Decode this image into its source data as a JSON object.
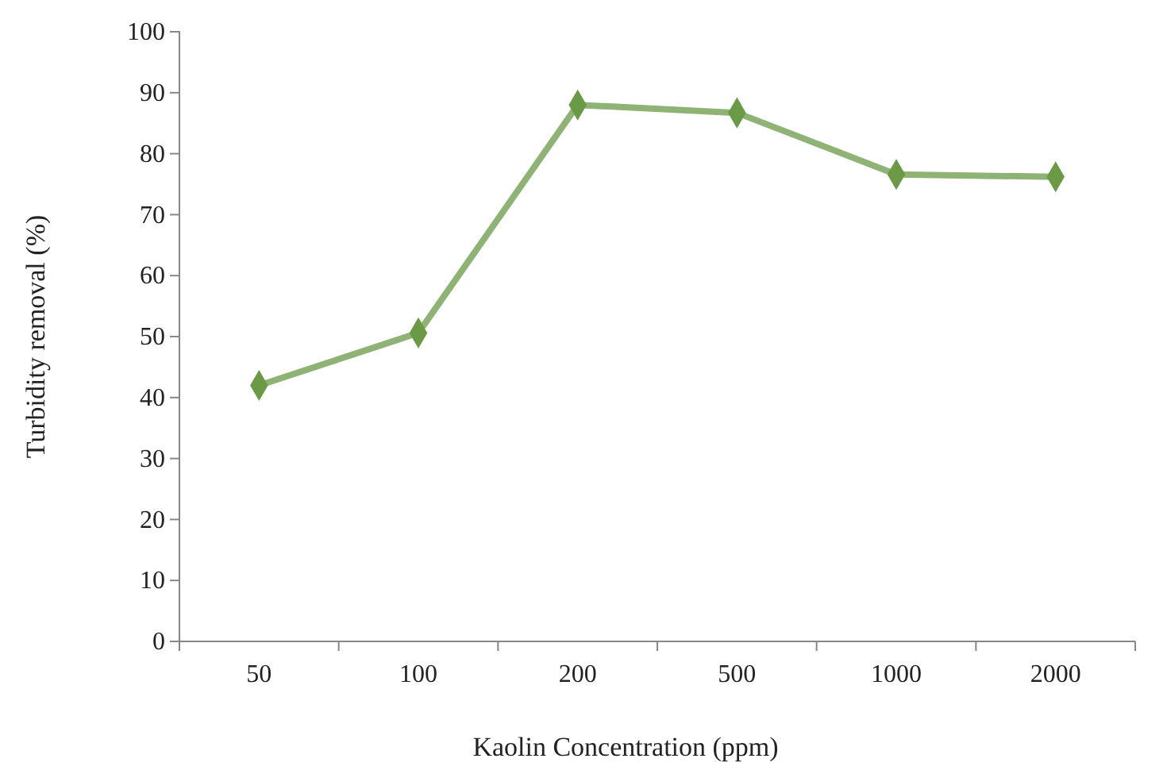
{
  "chart_data": {
    "type": "line",
    "xlabel": "Kaolin  Concentration  (ppm)",
    "ylabel": "Turbidity  removal  (%)",
    "categories": [
      "50",
      "100",
      "200",
      "500",
      "1000",
      "2000"
    ],
    "series": [
      {
        "color": "#6a9a45",
        "values": [
          42,
          50.6,
          88,
          86.7,
          76.6,
          76.2
        ]
      }
    ],
    "ylim": [
      0,
      100
    ],
    "yticks": [
      0,
      10,
      20,
      30,
      40,
      50,
      60,
      70,
      80,
      90,
      100
    ],
    "grid": false,
    "marker": "diamond",
    "line_style": "solid"
  }
}
